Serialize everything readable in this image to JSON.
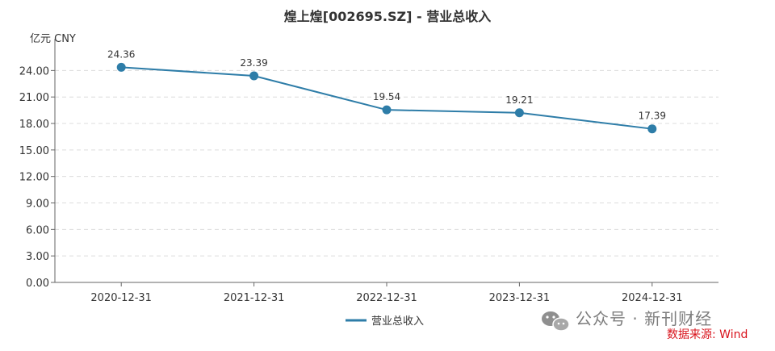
{
  "chart_data": {
    "type": "line",
    "title": "煌上煌[002695.SZ] - 营业总收入",
    "unit_label": "亿元  CNY",
    "categories": [
      "2020-12-31",
      "2021-12-31",
      "2022-12-31",
      "2023-12-31",
      "2024-12-31"
    ],
    "series": [
      {
        "name": "营业总收入",
        "values": [
          24.36,
          23.39,
          19.54,
          19.21,
          17.39
        ],
        "color": "#2e7da8"
      }
    ],
    "data_labels": [
      "24.36",
      "23.39",
      "19.54",
      "19.21",
      "17.39"
    ],
    "yticks": [
      "0.00",
      "3.00",
      "6.00",
      "9.00",
      "12.00",
      "15.00",
      "18.00",
      "21.00",
      "24.00"
    ],
    "ylim": [
      0,
      26.5
    ],
    "grid": true,
    "legend_position": "bottom-center"
  },
  "watermark": {
    "text": "公众号 · 新刊财经",
    "icon": "wechat-icon"
  },
  "source": {
    "text": "数据来源: Wind",
    "color": "#d9141d"
  }
}
